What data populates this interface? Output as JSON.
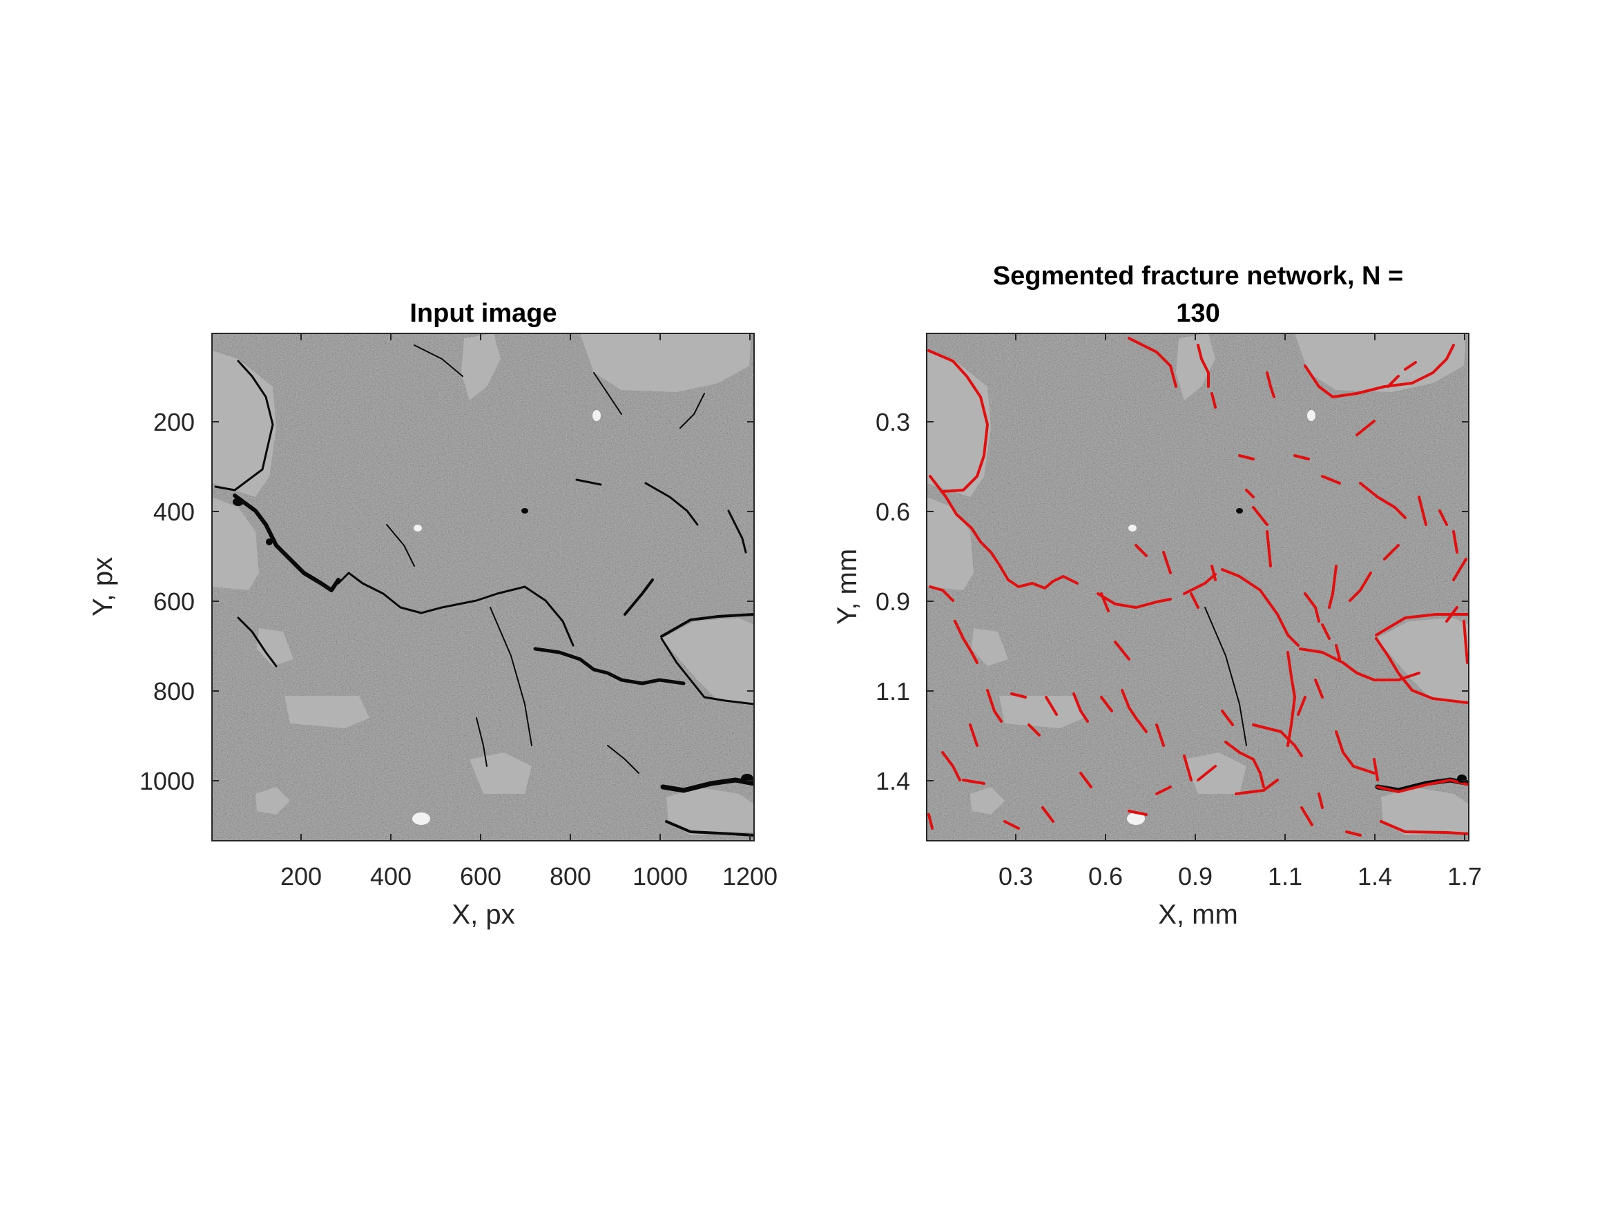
{
  "panels": [
    {
      "title_lines": [
        "Input image"
      ],
      "xlabel": "X, px",
      "ylabel": "Y, px",
      "xticks": [
        "200",
        "400",
        "600",
        "800",
        "1000",
        "1200"
      ],
      "yticks": [
        "200",
        "400",
        "600",
        "800",
        "1000"
      ]
    },
    {
      "title_lines": [
        "Segmented fracture network, N =",
        "130"
      ],
      "xlabel": "X, mm",
      "ylabel": "Y, mm",
      "xticks": [
        "0.3",
        "0.6",
        "0.9",
        "1.1",
        "1.4",
        "1.7"
      ],
      "yticks": [
        "0.3",
        "0.6",
        "0.9",
        "1.1",
        "1.4"
      ]
    }
  ],
  "colors": {
    "background": "#ffffff",
    "rock_matrix": "#7a7a7a",
    "grain": "#b4b4b4",
    "fracture": "#0a0a0a",
    "segmented_fracture": "#e01010",
    "axis": "#262626"
  }
}
